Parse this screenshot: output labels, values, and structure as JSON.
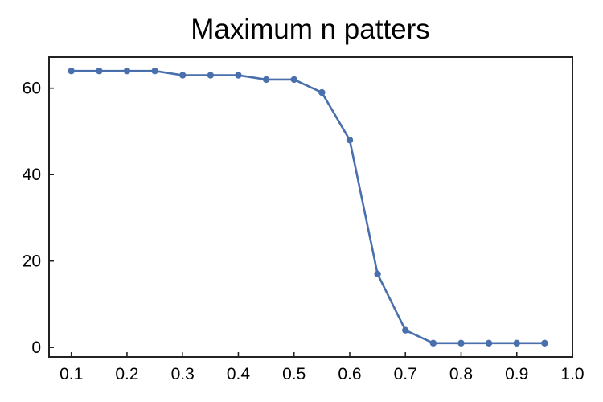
{
  "chart_data": {
    "type": "line",
    "title": "Maximum n patters",
    "xlabel": "",
    "ylabel": "",
    "xlim": [
      0.06,
      1.0
    ],
    "ylim": [
      -2.2,
      67.2
    ],
    "xticks": [
      "0.1",
      "0.2",
      "0.3",
      "0.4",
      "0.5",
      "0.6",
      "0.7",
      "0.8",
      "0.9",
      "1.0"
    ],
    "yticks": [
      "0",
      "20",
      "40",
      "60"
    ],
    "grid": false,
    "legend": "none",
    "series": [
      {
        "color": "#4a6fad",
        "x": [
          0.1,
          0.15,
          0.2,
          0.25,
          0.3,
          0.35,
          0.4,
          0.45,
          0.5,
          0.55,
          0.6,
          0.65,
          0.7,
          0.75,
          0.8,
          0.85,
          0.9,
          0.95
        ],
        "y": [
          64,
          64,
          64,
          64,
          63,
          63,
          63,
          62,
          62,
          59,
          48,
          17,
          4,
          1,
          1,
          1,
          1,
          1
        ]
      }
    ]
  }
}
